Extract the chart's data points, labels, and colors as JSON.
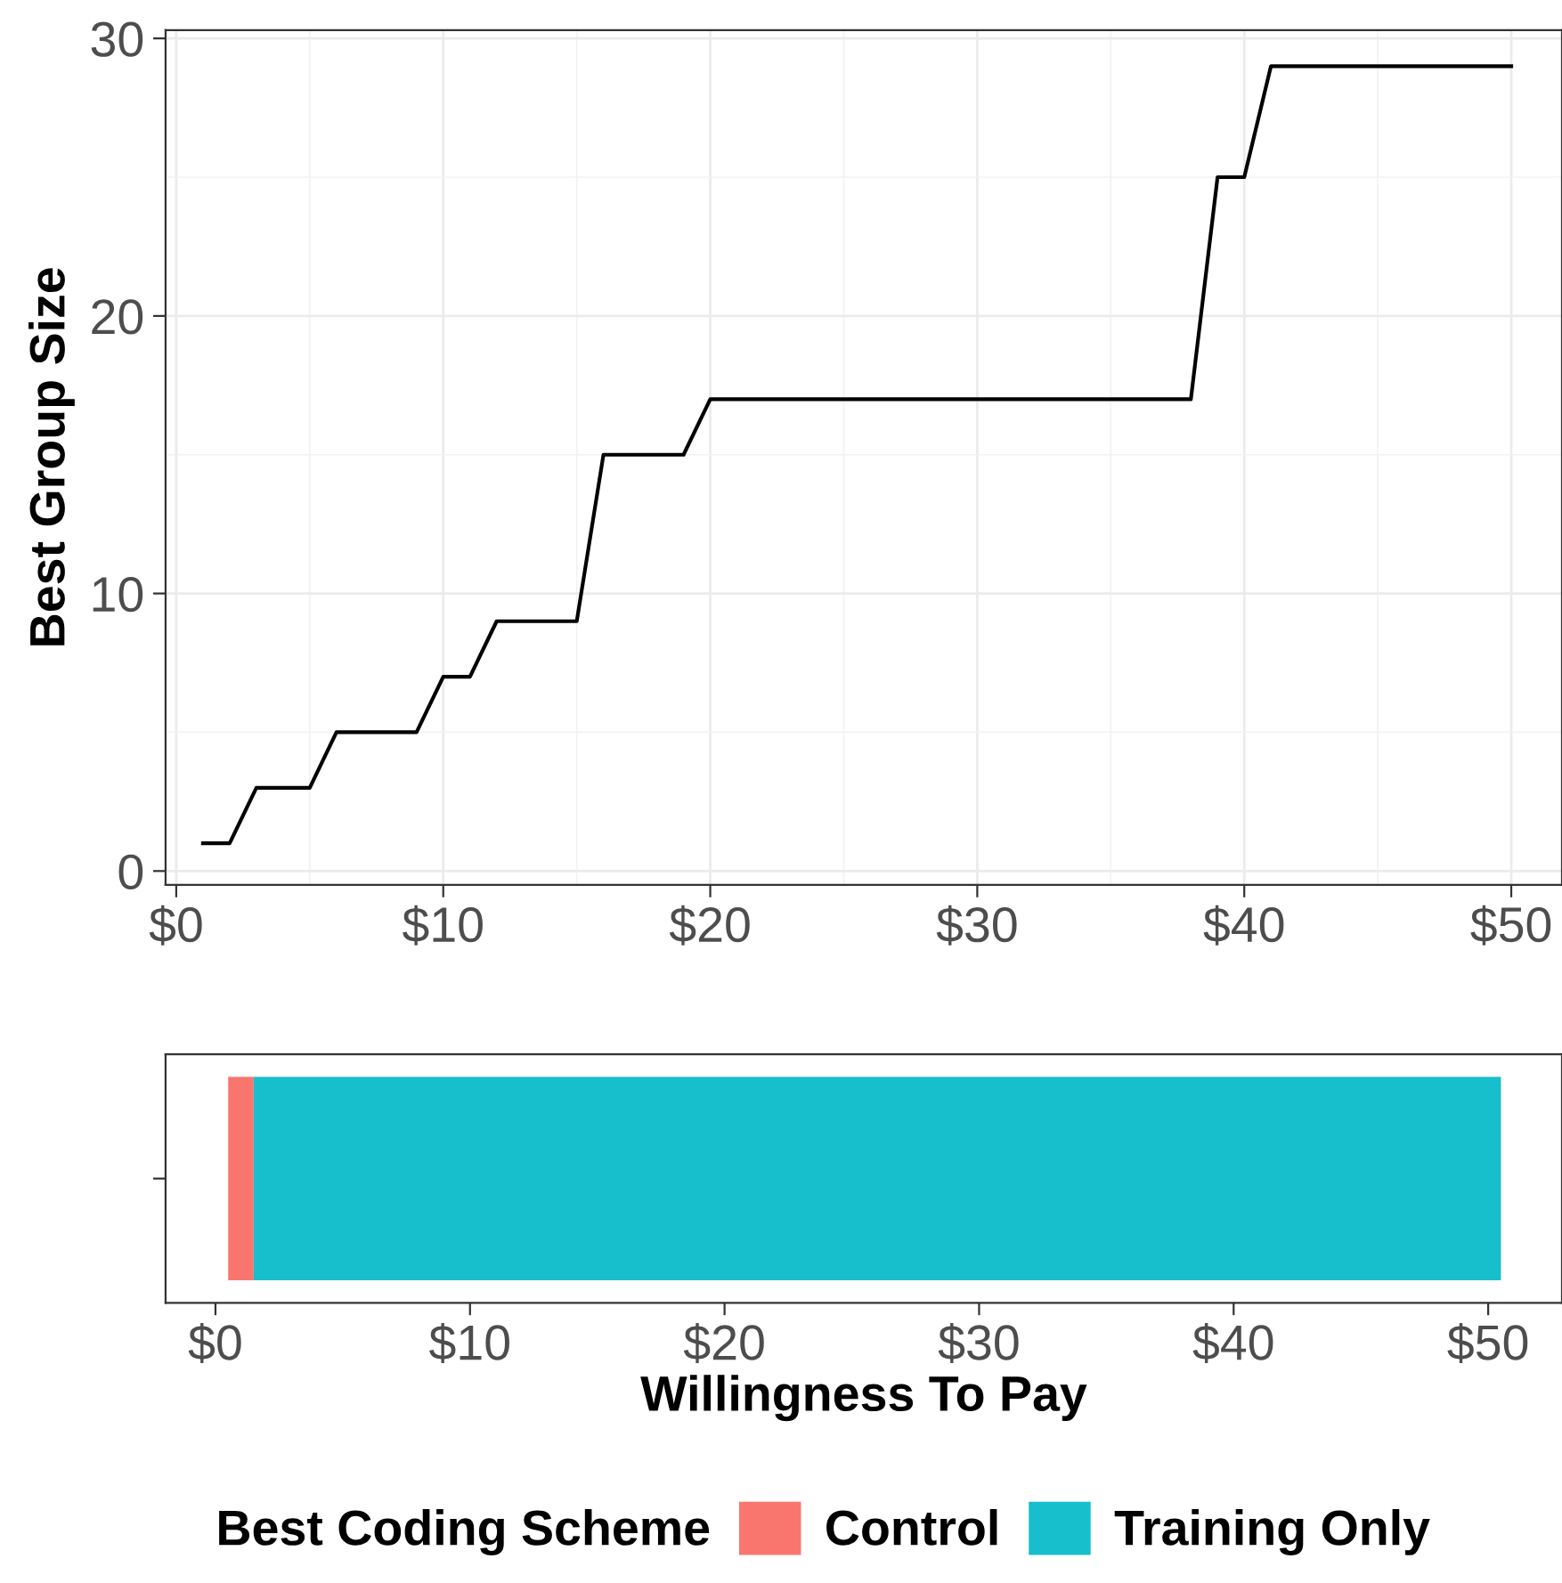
{
  "chart_data": [
    {
      "type": "line",
      "x": [
        1,
        2,
        3,
        4,
        5,
        6,
        7,
        8,
        9,
        10,
        11,
        12,
        13,
        14,
        15,
        16,
        17,
        18,
        19,
        20,
        21,
        22,
        23,
        24,
        25,
        26,
        27,
        28,
        29,
        30,
        31,
        32,
        33,
        34,
        35,
        36,
        37,
        38,
        39,
        40,
        41,
        42,
        43,
        44,
        45,
        46,
        47,
        48,
        49,
        50
      ],
      "series": [
        {
          "color": "#000000",
          "values": [
            1,
            1,
            3,
            3,
            3,
            5,
            5,
            5,
            5,
            7,
            7,
            9,
            9,
            9,
            9,
            15,
            15,
            15,
            15,
            17,
            17,
            17,
            17,
            17,
            17,
            17,
            17,
            17,
            17,
            17,
            17,
            17,
            17,
            17,
            17,
            17,
            17,
            17,
            25,
            25,
            29,
            29,
            29,
            29,
            29,
            29,
            29,
            29,
            29,
            29
          ]
        }
      ],
      "ylabel": "Best Group Size",
      "xlim": [
        -0.4,
        51.9
      ],
      "ylim": [
        -0.5,
        30.3
      ],
      "xticks": [
        {
          "value": 0,
          "label": "$0"
        },
        {
          "value": 10,
          "label": "$10"
        },
        {
          "value": 20,
          "label": "$20"
        },
        {
          "value": 30,
          "label": "$30"
        },
        {
          "value": 40,
          "label": "$40"
        },
        {
          "value": 50,
          "label": "$50"
        }
      ],
      "yticks": [
        0,
        10,
        20,
        30
      ],
      "grid": true
    },
    {
      "type": "bar",
      "orientation": "horizontal",
      "categories": [
        null
      ],
      "series": [
        {
          "name": "Control",
          "color": "#f8766d",
          "values": [
            1
          ],
          "base": [
            0.5
          ]
        },
        {
          "name": "Training Only",
          "color": "#17becb",
          "values": [
            49
          ],
          "base": [
            1.5
          ]
        }
      ],
      "xlabel": "Willingness To Pay",
      "legend_title": "Best Coding Scheme",
      "legend": "bottom",
      "xlim": [
        -1.96,
        52.9
      ],
      "xticks": [
        {
          "value": 0,
          "label": "$0"
        },
        {
          "value": 10,
          "label": "$10"
        },
        {
          "value": 20,
          "label": "$20"
        },
        {
          "value": 30,
          "label": "$30"
        },
        {
          "value": 40,
          "label": "$40"
        },
        {
          "value": 50,
          "label": "$50"
        }
      ]
    }
  ]
}
